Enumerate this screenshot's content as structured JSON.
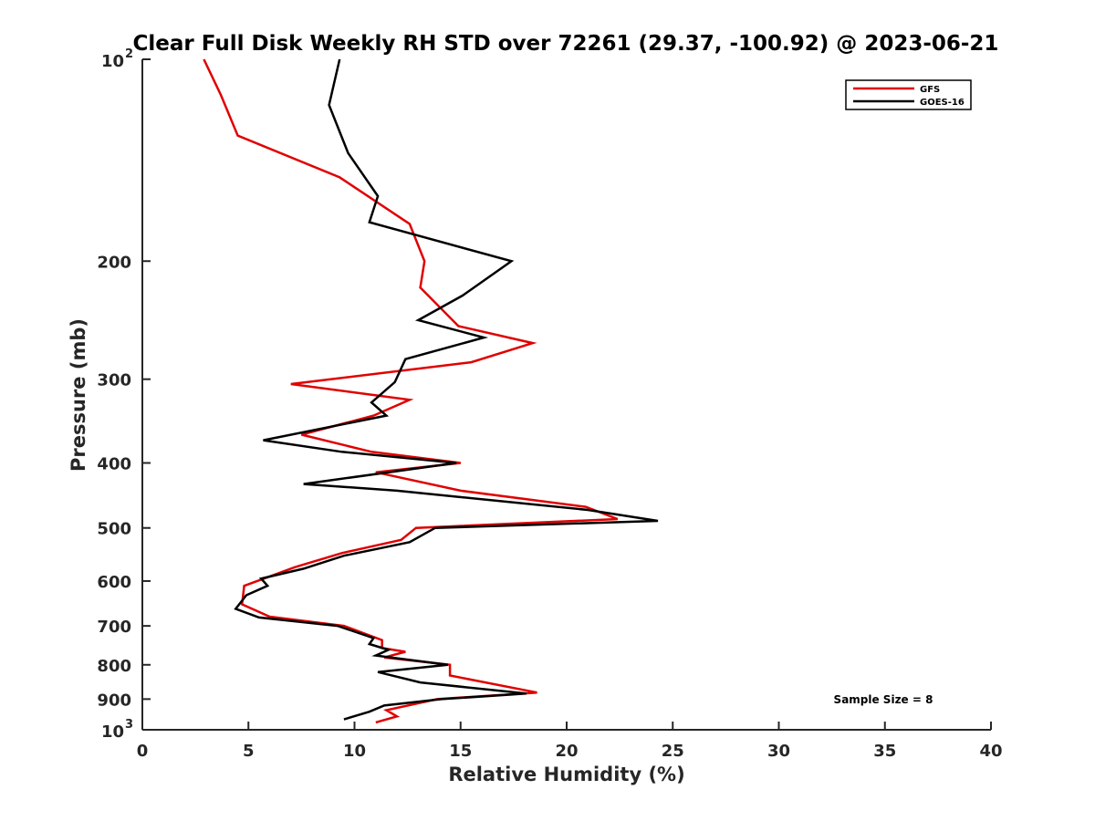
{
  "chart_data": {
    "type": "line",
    "title": "Clear Full Disk Weekly RH STD over 72261 (29.37, -100.92) @ 2023-06-21",
    "xlabel": "Relative Humidity (%)",
    "ylabel": "Pressure (mb)",
    "xlim": [
      0,
      40
    ],
    "ylim": [
      1000,
      100
    ],
    "yscale": "log",
    "x_ticks": [
      "0",
      "5",
      "10",
      "15",
      "20",
      "25",
      "30",
      "35",
      "40"
    ],
    "x_tick_values": [
      0,
      5,
      10,
      15,
      20,
      25,
      30,
      35,
      40
    ],
    "y_ticks": [
      {
        "value": 100,
        "base": "10",
        "exp": "2"
      },
      {
        "value": 200,
        "base": "200",
        "exp": ""
      },
      {
        "value": 300,
        "base": "300",
        "exp": ""
      },
      {
        "value": 400,
        "base": "400",
        "exp": ""
      },
      {
        "value": 500,
        "base": "500",
        "exp": ""
      },
      {
        "value": 600,
        "base": "600",
        "exp": ""
      },
      {
        "value": 700,
        "base": "700",
        "exp": ""
      },
      {
        "value": 800,
        "base": "800",
        "exp": ""
      },
      {
        "value": 900,
        "base": "900",
        "exp": ""
      },
      {
        "value": 1000,
        "base": "10",
        "exp": "3"
      }
    ],
    "grid": false,
    "legend_position": "top-right",
    "annotation": "Sample Size = 8",
    "series": [
      {
        "name": "GFS",
        "color": "#e00000",
        "points": [
          [
            2.9,
            100
          ],
          [
            3.7,
            113
          ],
          [
            4.5,
            130
          ],
          [
            9.3,
            150
          ],
          [
            12.6,
            176
          ],
          [
            13.3,
            200
          ],
          [
            13.1,
            219
          ],
          [
            14.9,
            250
          ],
          [
            18.4,
            265
          ],
          [
            15.5,
            283
          ],
          [
            7.0,
            305
          ],
          [
            12.6,
            322
          ],
          [
            10.9,
            340
          ],
          [
            7.5,
            363
          ],
          [
            10.8,
            385
          ],
          [
            15.0,
            400
          ],
          [
            11.0,
            413
          ],
          [
            15.0,
            440
          ],
          [
            20.9,
            465
          ],
          [
            22.4,
            485
          ],
          [
            12.9,
            500
          ],
          [
            12.2,
            521
          ],
          [
            9.4,
            545
          ],
          [
            7.2,
            572
          ],
          [
            4.8,
            610
          ],
          [
            4.7,
            650
          ],
          [
            6.0,
            678
          ],
          [
            9.5,
            700
          ],
          [
            11.3,
            735
          ],
          [
            11.3,
            755
          ],
          [
            12.4,
            765
          ],
          [
            11.4,
            780
          ],
          [
            14.5,
            800
          ],
          [
            14.5,
            830
          ],
          [
            18.6,
            880
          ],
          [
            13.9,
            900
          ],
          [
            11.5,
            935
          ],
          [
            12.0,
            955
          ],
          [
            11.0,
            975
          ]
        ]
      },
      {
        "name": "GOES-16",
        "color": "#000000",
        "points": [
          [
            9.3,
            100
          ],
          [
            8.8,
            117
          ],
          [
            9.7,
            138
          ],
          [
            11.1,
            160
          ],
          [
            10.7,
            175
          ],
          [
            17.4,
            200
          ],
          [
            15.1,
            225
          ],
          [
            13.0,
            245
          ],
          [
            16.1,
            260
          ],
          [
            12.4,
            280
          ],
          [
            11.9,
            303
          ],
          [
            10.8,
            325
          ],
          [
            11.5,
            340
          ],
          [
            5.7,
            370
          ],
          [
            9.4,
            385
          ],
          [
            14.8,
            400
          ],
          [
            7.6,
            430
          ],
          [
            12.0,
            440
          ],
          [
            21.0,
            470
          ],
          [
            24.3,
            488
          ],
          [
            13.8,
            500
          ],
          [
            12.6,
            525
          ],
          [
            9.5,
            550
          ],
          [
            7.6,
            575
          ],
          [
            5.6,
            595
          ],
          [
            5.9,
            610
          ],
          [
            4.9,
            630
          ],
          [
            4.4,
            660
          ],
          [
            5.5,
            680
          ],
          [
            9.2,
            700
          ],
          [
            10.9,
            730
          ],
          [
            10.7,
            745
          ],
          [
            11.6,
            760
          ],
          [
            11.0,
            775
          ],
          [
            14.4,
            800
          ],
          [
            11.1,
            820
          ],
          [
            13.1,
            850
          ],
          [
            18.1,
            883
          ],
          [
            14.1,
            900
          ],
          [
            11.4,
            920
          ],
          [
            10.7,
            940
          ],
          [
            9.5,
            965
          ]
        ]
      }
    ]
  }
}
